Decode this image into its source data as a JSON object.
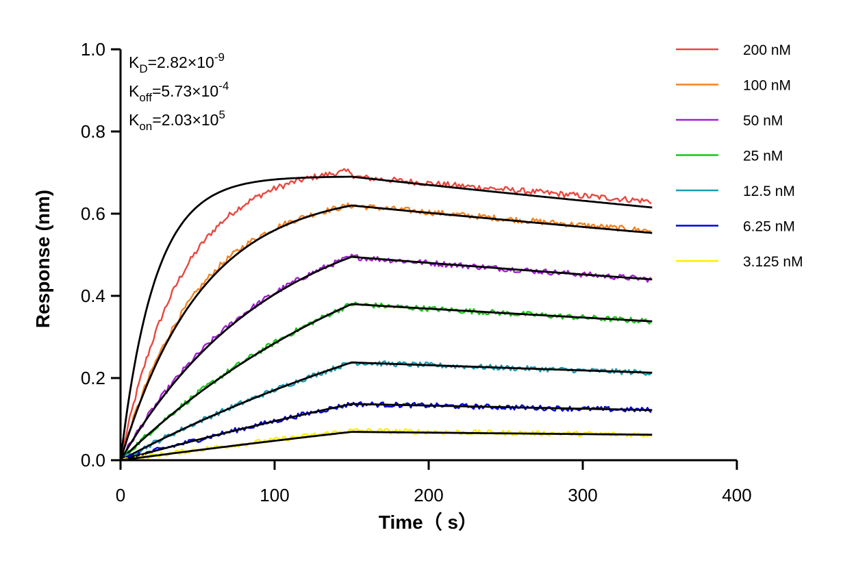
{
  "chart_data": {
    "type": "line",
    "xlabel": "Time（ s）",
    "ylabel": "Response (nm)",
    "xlim": [
      0,
      400
    ],
    "ylim": [
      0,
      1.0
    ],
    "xticks": [
      "0",
      "100",
      "200",
      "300",
      "400"
    ],
    "yticks": [
      "0.0",
      "0.2",
      "0.4",
      "0.6",
      "0.8",
      "1.0"
    ],
    "grid": false,
    "legend_position": "top-right",
    "annotations": {
      "kd": {
        "base": "K",
        "sub": "D",
        "value": "=2.82×10",
        "exp": "-9"
      },
      "koff": {
        "base": "K",
        "sub": "off",
        "value": "=5.73×10",
        "exp": "-4"
      },
      "kon": {
        "base": "K",
        "sub": "on",
        "value": "=2.03×10",
        "exp": "5"
      }
    },
    "association_end_s": 150,
    "end_s": 345,
    "fit_color": "#000000",
    "series": [
      {
        "name": "200 nM",
        "color": "#e8473f",
        "peak": 0.69,
        "end": 0.63,
        "fit_peak": 0.69,
        "fit_end": 0.615,
        "kobs": 0.045
      },
      {
        "name": "100 nM",
        "color": "#f5821f",
        "peak": 0.62,
        "end": 0.558,
        "fit_peak": 0.62,
        "fit_end": 0.553,
        "kobs": 0.02
      },
      {
        "name": "50 nM",
        "color": "#a020d0",
        "peak": 0.495,
        "end": 0.44,
        "fit_peak": 0.495,
        "fit_end": 0.44,
        "kobs": 0.0107
      },
      {
        "name": "25 nM",
        "color": "#1cc41c",
        "peak": 0.38,
        "end": 0.338,
        "fit_peak": 0.38,
        "fit_end": 0.338,
        "kobs": 0.0055
      },
      {
        "name": "12.5 nM",
        "color": "#1a9cb0",
        "peak": 0.238,
        "end": 0.213,
        "fit_peak": 0.238,
        "fit_end": 0.213,
        "kobs": 0.0033
      },
      {
        "name": "6.25 nM",
        "color": "#0000dd",
        "peak": 0.137,
        "end": 0.122,
        "fit_peak": 0.137,
        "fit_end": 0.122,
        "kobs": 0.0018
      },
      {
        "name": "3.125 nM",
        "color": "#ffee00",
        "peak": 0.072,
        "end": 0.062,
        "fit_peak": 0.069,
        "fit_end": 0.062,
        "kobs": 0.0012
      }
    ]
  }
}
